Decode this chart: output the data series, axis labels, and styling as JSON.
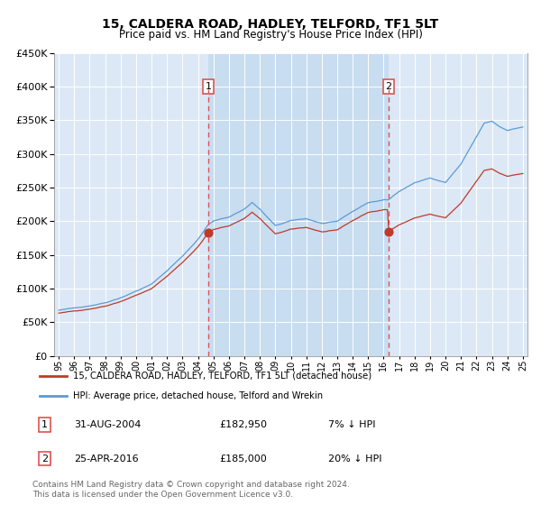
{
  "title": "15, CALDERA ROAD, HADLEY, TELFORD, TF1 5LT",
  "subtitle": "Price paid vs. HM Land Registry's House Price Index (HPI)",
  "hpi_color": "#5b9bd5",
  "price_color": "#c0392b",
  "marker_color": "#c0392b",
  "vline_color": "#e05252",
  "bg_color": "#dce8f5",
  "highlight_color": "#c8ddf0",
  "legend_label_red": "15, CALDERA ROAD, HADLEY, TELFORD, TF1 5LT (detached house)",
  "legend_label_blue": "HPI: Average price, detached house, Telford and Wrekin",
  "annotations": [
    {
      "num": "1",
      "date": "31-AUG-2004",
      "price": "£182,950",
      "pct": "7% ↓ HPI"
    },
    {
      "num": "2",
      "date": "25-APR-2016",
      "price": "£185,000",
      "pct": "20% ↓ HPI"
    }
  ],
  "footer": "Contains HM Land Registry data © Crown copyright and database right 2024.\nThis data is licensed under the Open Government Licence v3.0.",
  "ylim": [
    0,
    450000
  ],
  "yticks": [
    0,
    50000,
    100000,
    150000,
    200000,
    250000,
    300000,
    350000,
    400000,
    450000
  ],
  "sale1_year": 2004.667,
  "sale1_price": 182950,
  "sale2_year": 2016.333,
  "sale2_price": 185000,
  "xmin": 1995,
  "xmax": 2025
}
